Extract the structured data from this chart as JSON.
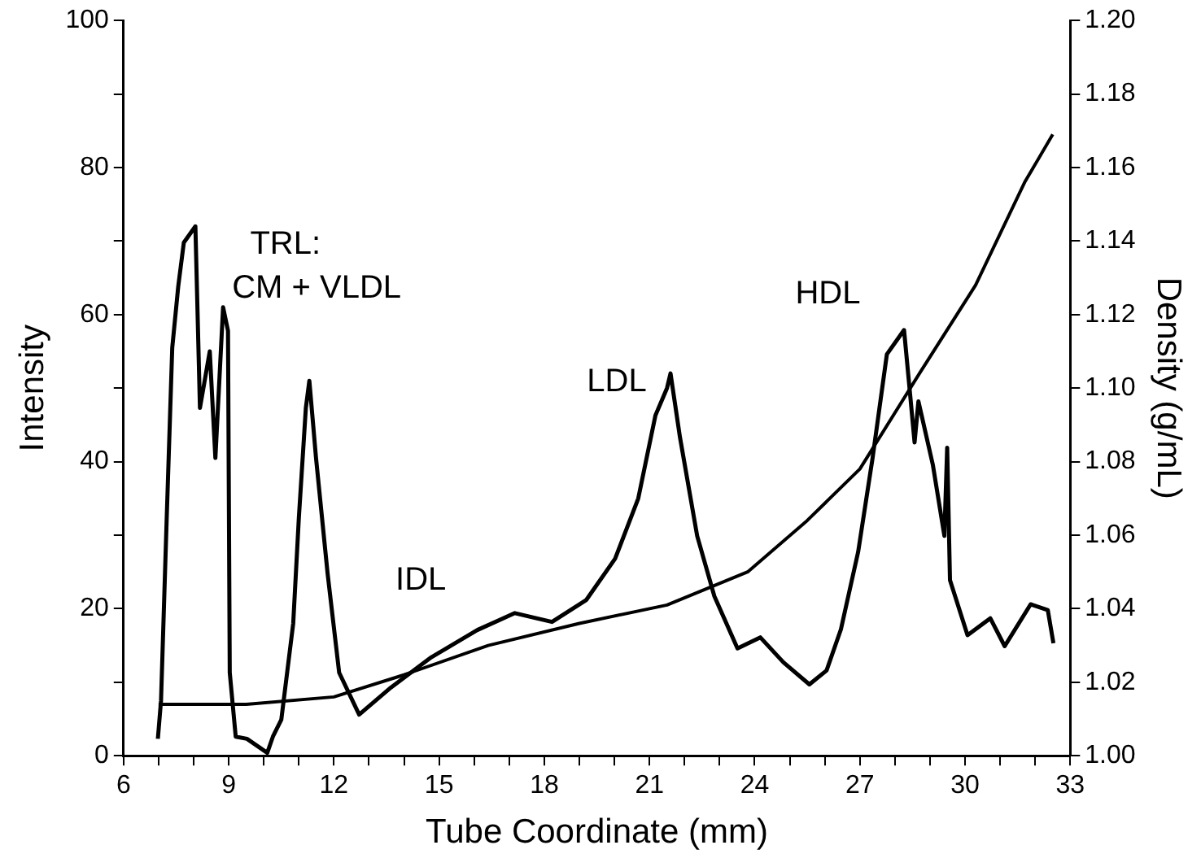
{
  "chart_data": {
    "type": "line",
    "xlabel": "Tube Coordinate (mm)",
    "ylabel": "Intensity",
    "y2label": "Density (g/mL)",
    "xlim": [
      6,
      33
    ],
    "xticks": [
      6,
      {
        "value": 7,
        "label": null
      },
      {
        "value": 8,
        "label": null
      },
      9,
      {
        "value": 10,
        "label": null
      },
      {
        "value": 11,
        "label": null
      },
      12,
      {
        "value": 13,
        "label": null
      },
      {
        "value": 14,
        "label": null
      },
      15,
      {
        "value": 16,
        "label": null
      },
      {
        "value": 17,
        "label": null
      },
      18,
      {
        "value": 19,
        "label": null
      },
      {
        "value": 20,
        "label": null
      },
      21,
      {
        "value": 22,
        "label": null
      },
      {
        "value": 23,
        "label": null
      },
      24,
      {
        "value": 25,
        "label": null
      },
      {
        "value": 26,
        "label": null
      },
      27,
      {
        "value": 28,
        "label": null
      },
      {
        "value": 29,
        "label": null
      },
      30,
      {
        "value": 31,
        "label": null
      },
      {
        "value": 32,
        "label": null
      },
      33
    ],
    "ylim": [
      0,
      100
    ],
    "yticks": [
      0,
      {
        "value": 10,
        "label": null
      },
      20,
      {
        "value": 30,
        "label": null
      },
      40,
      {
        "value": 50,
        "label": null
      },
      60,
      {
        "value": 70,
        "label": null
      },
      80,
      {
        "value": 90,
        "label": null
      },
      100
    ],
    "y2lim": [
      1.0,
      1.2
    ],
    "y2ticks": [
      {
        "value": 1.0,
        "label": "1.00"
      },
      {
        "value": 1.02,
        "label": "1.02"
      },
      {
        "value": 1.04,
        "label": "1.04"
      },
      {
        "value": 1.06,
        "label": "1.06"
      },
      {
        "value": 1.08,
        "label": "1.08"
      },
      {
        "value": 1.1,
        "label": "1.10"
      },
      {
        "value": 1.12,
        "label": "1.12"
      },
      {
        "value": 1.14,
        "label": "1.14"
      },
      {
        "value": 1.16,
        "label": "1.16"
      },
      {
        "value": 1.18,
        "label": "1.18"
      },
      {
        "value": 1.2,
        "label": "1.20"
      }
    ],
    "grid": false,
    "legend": false,
    "marker": "none",
    "line_style": "solid",
    "series": [
      {
        "color": "#000000",
        "x": [
          6.98,
          7.07,
          7.23,
          7.39,
          7.56,
          7.72,
          8.05,
          8.18,
          8.46,
          8.62,
          8.84,
          8.98,
          9.03,
          9.2,
          9.52,
          10.1,
          10.26,
          10.5,
          10.84,
          11.0,
          11.2,
          11.3,
          11.49,
          11.82,
          12.15,
          12.72,
          13.63,
          14.78,
          16.09,
          17.16,
          18.22,
          19.2,
          20.02,
          20.68,
          21.17,
          21.5,
          21.6,
          21.87,
          22.36,
          22.85,
          23.51,
          24.16,
          24.82,
          25.56,
          26.05,
          26.46,
          26.95,
          27.36,
          27.77,
          28.26,
          28.43,
          28.56,
          28.67,
          29.08,
          29.41,
          29.49,
          29.57,
          30.07,
          30.72,
          31.13,
          31.87,
          32.36,
          32.52
        ],
        "values": [
          2.3,
          7.5,
          32,
          55.5,
          63.8,
          69.8,
          72,
          47.3,
          55,
          40.5,
          61,
          57.8,
          11.3,
          2.6,
          2.3,
          0.4,
          2.6,
          4.9,
          18,
          32.3,
          47.3,
          51,
          40.5,
          24.8,
          11.3,
          5.6,
          9.3,
          13.4,
          17.1,
          19.4,
          18.2,
          21.2,
          26.8,
          35,
          46.3,
          50,
          52,
          43.3,
          29.9,
          21.7,
          14.6,
          16.1,
          12.7,
          9.7,
          11.6,
          17.2,
          27.7,
          40.4,
          54.6,
          57.9,
          49.3,
          42.6,
          48.2,
          39.6,
          29.9,
          41.9,
          23.9,
          16.4,
          18.7,
          14.9,
          20.6,
          19.8,
          15.3
        ]
      },
      {
        "color": "#000000",
        "axis": "y2",
        "x": [
          7,
          9.5,
          12,
          14,
          16.4,
          19,
          21.5,
          23.8,
          25.5,
          27,
          28.7,
          30.3,
          31.7,
          32.5
        ],
        "values": [
          1.014,
          1.014,
          1.016,
          1.022,
          1.03,
          1.036,
          1.041,
          1.05,
          1.064,
          1.078,
          1.104,
          1.128,
          1.156,
          1.169
        ]
      }
    ],
    "annotations": [
      "TRL:",
      "CM + VLDL",
      "IDL",
      "LDL",
      "HDL"
    ]
  }
}
